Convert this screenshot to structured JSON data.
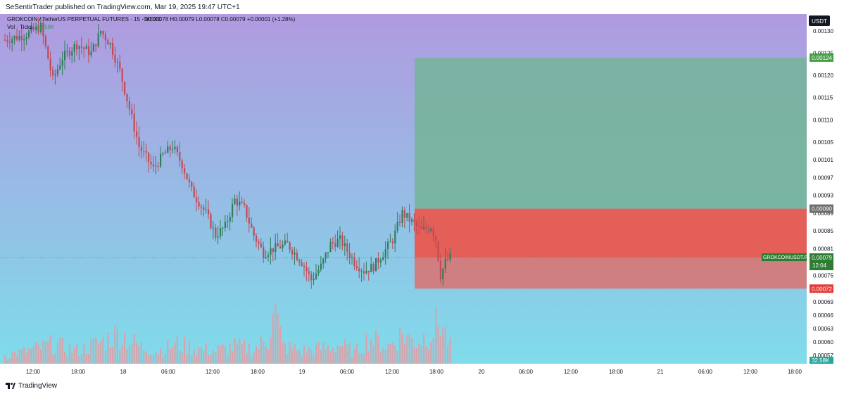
{
  "header": {
    "published_text": "SeSentirTrader published on TradingView.com, Mar 19, 2025 19:47 UTC+1"
  },
  "legend": {
    "symbol_line": "GROKCOIN / TetherUS PERPETUAL FUTURES · 15 · MEXC",
    "ohlc_line": "O0.00078 H0.00079 L0.00078 C0.00079 +0.00001 (+1.28%)",
    "volume_label": "Vol · Ticks",
    "volume_value": "32.58K"
  },
  "price_axis": {
    "currency": "USDT",
    "ticks": [
      "0.00130",
      "0.00125",
      "0.00120",
      "0.00115",
      "0.00110",
      "0.00105",
      "0.00101",
      "0.00097",
      "0.00093",
      "0.00089",
      "0.00085",
      "0.00081",
      "0.00075",
      "0.00069",
      "0.00066",
      "0.00063",
      "0.00060",
      "0.00057"
    ],
    "target_label": "0.00124",
    "entry_label": "0.00090",
    "stop_label": "0.00072",
    "last_price_label": "0.00079",
    "countdown": "12:04",
    "symbol_tag": "GROKCOINUSDT.P",
    "volume_tag": "32.58K"
  },
  "time_axis": {
    "labels": [
      "12:00",
      "18:00",
      "18",
      "06:00",
      "12:00",
      "18:00",
      "19",
      "06:00",
      "12:00",
      "18:00",
      "20",
      "06:00",
      "12:00",
      "18:00",
      "21",
      "06:00",
      "12:00",
      "18:00"
    ]
  },
  "footer": {
    "brand": "TradingView"
  },
  "colors": {
    "gradient_top": "#b09ae0",
    "gradient_bottom": "#7fdcea",
    "profit_zone": "#74b498",
    "loss_zone": "#e85a4f",
    "loss_zone_lower": "#d47a7a",
    "candle_up": "#2e7d5b",
    "candle_down": "#c04a55",
    "vol_bar": "#e89aa0"
  },
  "chart_data": {
    "type": "candlestick",
    "title": "GROKCOIN / TetherUS PERPETUAL FUTURES · 15 · MEXC",
    "interval": "15",
    "ylim": [
      0.00055,
      0.00133
    ],
    "price_path": [
      [
        0,
        0.00128
      ],
      [
        8,
        0.00129
      ],
      [
        15,
        0.00131
      ],
      [
        20,
        0.00119
      ],
      [
        24,
        0.00124
      ],
      [
        30,
        0.00127
      ],
      [
        36,
        0.00125
      ],
      [
        40,
        0.0013
      ],
      [
        44,
        0.00127
      ],
      [
        48,
        0.00121
      ],
      [
        56,
        0.00104
      ],
      [
        62,
        0.00099
      ],
      [
        66,
        0.00102
      ],
      [
        70,
        0.00104
      ],
      [
        74,
        0.001
      ],
      [
        78,
        0.00094
      ],
      [
        84,
        0.00089
      ],
      [
        88,
        0.00084
      ],
      [
        92,
        0.00086
      ],
      [
        96,
        0.00092
      ],
      [
        100,
        0.0009
      ],
      [
        104,
        0.00084
      ],
      [
        108,
        0.0008
      ],
      [
        112,
        0.00081
      ],
      [
        118,
        0.00082
      ],
      [
        124,
        0.00078
      ],
      [
        128,
        0.00074
      ],
      [
        132,
        0.00077
      ],
      [
        136,
        0.00082
      ],
      [
        140,
        0.00083
      ],
      [
        146,
        0.00078
      ],
      [
        150,
        0.00076
      ],
      [
        154,
        0.00077
      ],
      [
        158,
        0.0008
      ],
      [
        162,
        0.00083
      ],
      [
        166,
        0.00089
      ],
      [
        170,
        0.00087
      ],
      [
        174,
        0.00085
      ],
      [
        178,
        0.00086
      ],
      [
        180,
        0.00083
      ],
      [
        182,
        0.00075
      ],
      [
        184,
        0.00078
      ],
      [
        186,
        0.00079
      ]
    ],
    "volume_path": [
      [
        0,
        4
      ],
      [
        10,
        6
      ],
      [
        20,
        9
      ],
      [
        30,
        6
      ],
      [
        40,
        10
      ],
      [
        48,
        14
      ],
      [
        56,
        8
      ],
      [
        64,
        6
      ],
      [
        72,
        9
      ],
      [
        80,
        7
      ],
      [
        88,
        6
      ],
      [
        96,
        8
      ],
      [
        104,
        7
      ],
      [
        110,
        11
      ],
      [
        112,
        30
      ],
      [
        116,
        8
      ],
      [
        124,
        6
      ],
      [
        132,
        7
      ],
      [
        140,
        9
      ],
      [
        146,
        5
      ],
      [
        152,
        12
      ],
      [
        160,
        8
      ],
      [
        166,
        14
      ],
      [
        172,
        10
      ],
      [
        178,
        15
      ],
      [
        182,
        20
      ],
      [
        186,
        8
      ]
    ],
    "zones": {
      "target": 0.00124,
      "entry": 0.0009,
      "stop": 0.00072
    },
    "last_price": 0.00079
  }
}
